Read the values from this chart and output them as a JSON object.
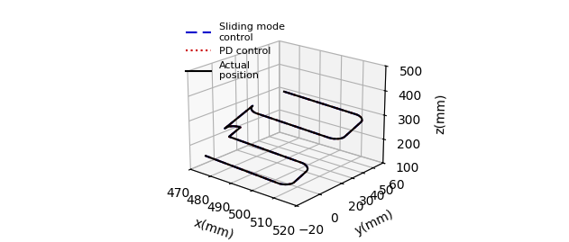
{
  "title": "",
  "xlabel": "x(mm)",
  "ylabel": "y(mm)",
  "zlabel": "z(mm)",
  "xlim": [
    470,
    520
  ],
  "ylim": [
    -20,
    60
  ],
  "zlim": [
    100,
    500
  ],
  "xticks": [
    470,
    480,
    490,
    500,
    510,
    520
  ],
  "yticks": [
    -20,
    0,
    20,
    30,
    40,
    50,
    60
  ],
  "zticks": [
    100,
    200,
    300,
    400,
    500
  ],
  "actual_color": "#000000",
  "pd_color": "#cc0000",
  "smc_color": "#0000cc",
  "actual_lw": 1.5,
  "pd_lw": 1.5,
  "smc_lw": 1.5,
  "legend_actual": "Actual\nposition",
  "legend_pd": "PD control",
  "legend_smc": "Sliding mode\ncontrol",
  "figsize": [
    6.31,
    2.69
  ],
  "dpi": 100
}
